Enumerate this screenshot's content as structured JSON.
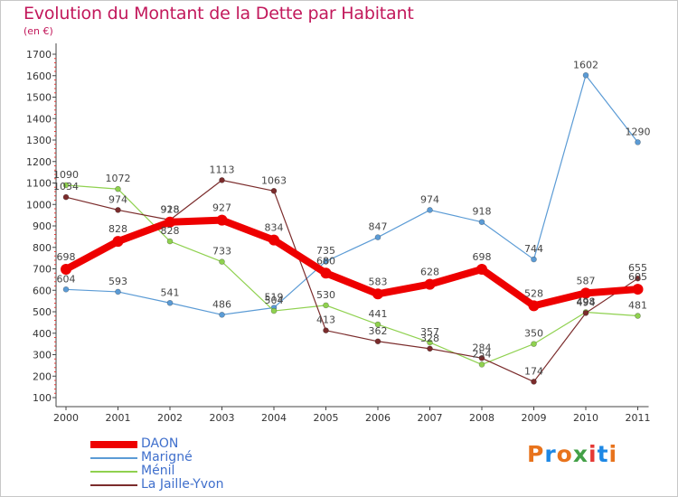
{
  "header": {
    "title": "Evolution du Montant de la Dette par Habitant",
    "subtitle": "(en €)"
  },
  "logo": {
    "text": "Proxiti",
    "colors": [
      "#e8731c",
      "#1e88e5",
      "#e8731c",
      "#43a047",
      "#e53935",
      "#1e88e5",
      "#e8731c"
    ]
  },
  "chart_data": {
    "type": "line",
    "title": "Evolution du Montant de la Dette par Habitant",
    "subtitle": "(en €)",
    "x": [
      "2000",
      "2001",
      "2002",
      "2003",
      "2004",
      "2005",
      "2006",
      "2007",
      "2008",
      "2009",
      "2010",
      "2011"
    ],
    "ylim": [
      100,
      1700
    ],
    "yticks": [
      "100",
      "200",
      "300",
      "400",
      "500",
      "600",
      "700",
      "800",
      "900",
      "1000",
      "1100",
      "1200",
      "1300",
      "1400",
      "1500",
      "1600",
      "1700"
    ],
    "grid": false,
    "legend_position": "bottom-left",
    "series": [
      {
        "name": "Marigné",
        "color": "#5b9bd5",
        "values": [
          604,
          593,
          541,
          486,
          519,
          735,
          847,
          974,
          918,
          744,
          1602,
          1290
        ]
      },
      {
        "name": "Ménil",
        "color": "#8fd14f",
        "values": [
          1090,
          1072,
          828,
          733,
          504,
          530,
          441,
          357,
          254,
          350,
          498,
          481
        ]
      },
      {
        "name": "La Jaille-Yvon",
        "color": "#7b2c2c",
        "values": [
          1034,
          974,
          928,
          1113,
          1063,
          413,
          362,
          328,
          284,
          174,
          494,
          655
        ]
      },
      {
        "name": "DAON",
        "color": "#ee0000",
        "values": [
          698,
          828,
          918,
          927,
          834,
          680,
          583,
          628,
          698,
          528,
          587,
          605
        ]
      }
    ]
  }
}
